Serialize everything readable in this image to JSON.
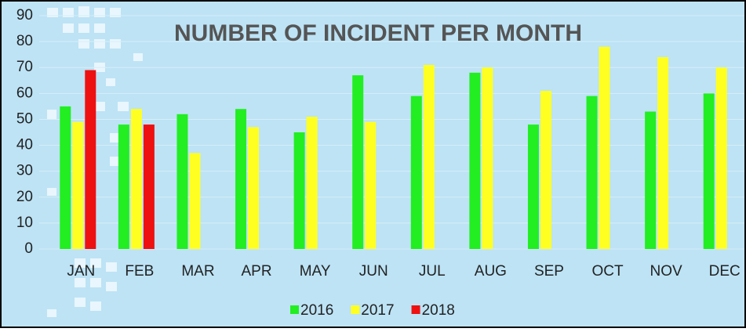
{
  "chart_data": {
    "type": "bar",
    "title": "NUMBER OF INCIDENT PER MONTH",
    "categories": [
      "JAN",
      "FEB",
      "MAR",
      "APR",
      "MAY",
      "JUN",
      "JUL",
      "AUG",
      "SEP",
      "OCT",
      "NOV",
      "DEC"
    ],
    "series": [
      {
        "name": "2016",
        "color": "#22ee22",
        "values": [
          55,
          48,
          52,
          54,
          45,
          67,
          59,
          68,
          48,
          59,
          53,
          60
        ]
      },
      {
        "name": "2017",
        "color": "#ffff22",
        "values": [
          49,
          54,
          37,
          47,
          51,
          49,
          71,
          70,
          61,
          78,
          74,
          70
        ]
      },
      {
        "name": "2018",
        "color": "#ee1111",
        "values": [
          69,
          48,
          null,
          null,
          null,
          null,
          null,
          null,
          null,
          null,
          null,
          null
        ]
      }
    ],
    "ylim": [
      0,
      90
    ],
    "yticks": [
      0,
      10,
      20,
      30,
      40,
      50,
      60,
      70,
      80,
      90
    ],
    "grid": true,
    "legend": "bottom"
  }
}
